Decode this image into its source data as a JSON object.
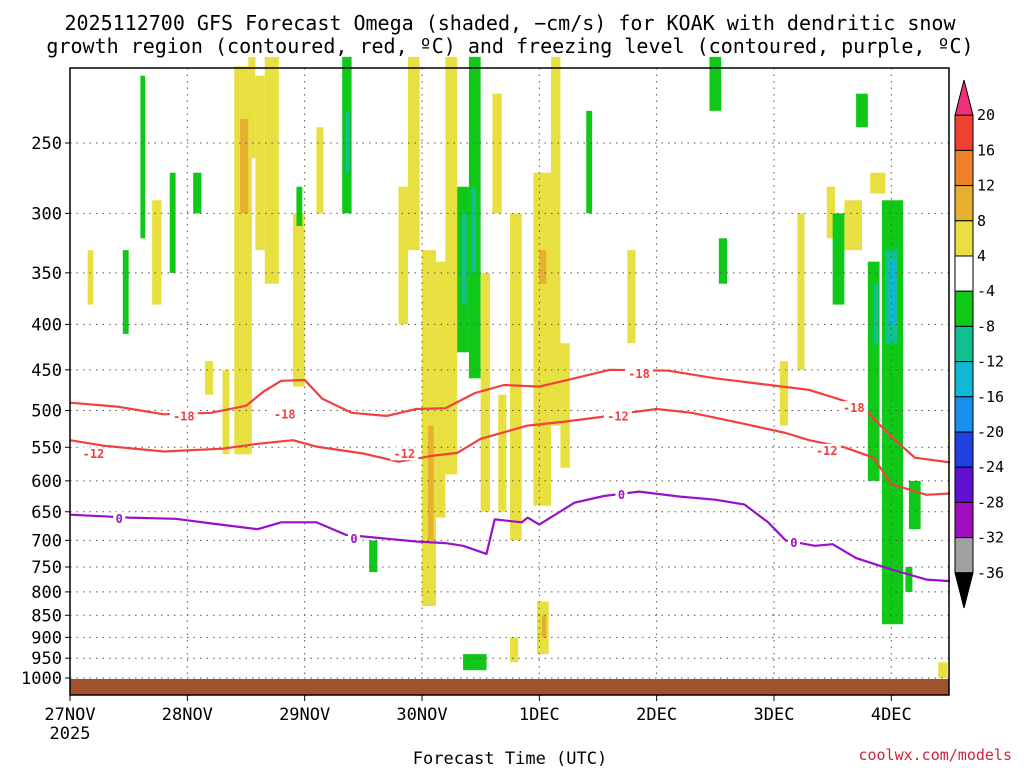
{
  "chart_data": {
    "type": "heatmap",
    "title_lines": [
      "2025112700 GFS Forecast Omega (shaded, −cm/s) for KOAK with dendritic snow",
      "growth region (contoured, red, ºC) and freezing level (contoured, purple, ºC)"
    ],
    "xlabel": "Forecast Time (UTC)",
    "x_ticks": [
      {
        "t": 0,
        "label": "27NOV",
        "sub": "2025"
      },
      {
        "t": 1,
        "label": "28NOV",
        "sub": ""
      },
      {
        "t": 2,
        "label": "29NOV",
        "sub": ""
      },
      {
        "t": 3,
        "label": "30NOV",
        "sub": ""
      },
      {
        "t": 4,
        "label": "1DEC",
        "sub": ""
      },
      {
        "t": 5,
        "label": "2DEC",
        "sub": ""
      },
      {
        "t": 6,
        "label": "3DEC",
        "sub": ""
      },
      {
        "t": 7,
        "label": "4DEC",
        "sub": ""
      }
    ],
    "xlim": [
      0,
      7.5
    ],
    "y_ticks": [
      250,
      300,
      350,
      400,
      450,
      500,
      550,
      600,
      650,
      700,
      750,
      800,
      850,
      900,
      950,
      1000
    ],
    "y_label_ticks": [
      "250",
      "300",
      "350",
      "400",
      "450",
      "500",
      "550",
      "600",
      "650",
      "700",
      "750",
      "800",
      "850",
      "900",
      "950",
      "1000"
    ],
    "ylim": [
      200,
      1010
    ],
    "y_scale": "log-pressure (inverted)",
    "grid": true,
    "colorbar": {
      "labels": [
        "20",
        "16",
        "12",
        "8",
        "4",
        "-4",
        "-8",
        "-12",
        "-16",
        "-20",
        "-24",
        "-28",
        "-32",
        "-36"
      ],
      "levels": [
        20,
        16,
        12,
        8,
        4,
        -4,
        -8,
        -12,
        -16,
        -20,
        -24,
        -28,
        -32,
        -36
      ],
      "colors": [
        "#f0307a",
        "#f04030",
        "#f08028",
        "#e8b030",
        "#e8e040",
        "#ffffff",
        "#10c818",
        "#10c090",
        "#10b8d8",
        "#1890ee",
        "#2040e0",
        "#6010d0",
        "#a010c0",
        "#a0a0a0",
        "#000000"
      ]
    },
    "contours": [
      {
        "label": "-18",
        "color": "#f04040",
        "label_positions": [
          [
            0.97,
            508
          ],
          [
            1.83,
            505
          ],
          [
            4.85,
            455
          ],
          [
            6.68,
            497
          ]
        ],
        "points": [
          [
            0,
            490
          ],
          [
            0.4,
            495
          ],
          [
            0.8,
            505
          ],
          [
            1.2,
            503
          ],
          [
            1.5,
            494
          ],
          [
            1.65,
            476
          ],
          [
            1.8,
            463
          ],
          [
            2.0,
            462
          ],
          [
            2.15,
            485
          ],
          [
            2.4,
            503
          ],
          [
            2.7,
            507
          ],
          [
            2.95,
            498
          ],
          [
            3.2,
            497
          ],
          [
            3.45,
            478
          ],
          [
            3.7,
            468
          ],
          [
            4.0,
            470
          ],
          [
            4.3,
            460
          ],
          [
            4.6,
            450
          ],
          [
            5.1,
            451
          ],
          [
            5.5,
            460
          ],
          [
            5.9,
            467
          ],
          [
            6.3,
            474
          ],
          [
            6.5,
            483
          ],
          [
            6.75,
            495
          ],
          [
            7.0,
            535
          ],
          [
            7.2,
            565
          ],
          [
            7.5,
            572
          ]
        ]
      },
      {
        "label": "-12",
        "color": "#f04040",
        "label_positions": [
          [
            0.2,
            560
          ],
          [
            2.85,
            560
          ],
          [
            4.67,
            508
          ],
          [
            6.45,
            555
          ]
        ],
        "points": [
          [
            0,
            540
          ],
          [
            0.3,
            548
          ],
          [
            0.8,
            556
          ],
          [
            1.3,
            552
          ],
          [
            1.6,
            545
          ],
          [
            1.9,
            540
          ],
          [
            2.1,
            549
          ],
          [
            2.5,
            559
          ],
          [
            2.8,
            571
          ],
          [
            3.1,
            562
          ],
          [
            3.3,
            558
          ],
          [
            3.5,
            538
          ],
          [
            3.9,
            520
          ],
          [
            4.2,
            515
          ],
          [
            4.5,
            509
          ],
          [
            4.7,
            504
          ],
          [
            5.0,
            498
          ],
          [
            5.3,
            503
          ],
          [
            5.7,
            516
          ],
          [
            6.1,
            530
          ],
          [
            6.3,
            540
          ],
          [
            6.6,
            550
          ],
          [
            6.85,
            565
          ],
          [
            7.0,
            605
          ],
          [
            7.3,
            622
          ],
          [
            7.5,
            620
          ]
        ]
      },
      {
        "label": "0",
        "color": "#9a10c8",
        "label_positions": [
          [
            0.42,
            662
          ],
          [
            2.42,
            698
          ],
          [
            4.7,
            622
          ],
          [
            6.17,
            705
          ]
        ],
        "points": [
          [
            0,
            655
          ],
          [
            0.5,
            660
          ],
          [
            0.9,
            662
          ],
          [
            1.2,
            670
          ],
          [
            1.6,
            680
          ],
          [
            1.8,
            668
          ],
          [
            2.1,
            668
          ],
          [
            2.35,
            690
          ],
          [
            2.7,
            697
          ],
          [
            2.95,
            702
          ],
          [
            3.2,
            705
          ],
          [
            3.35,
            710
          ],
          [
            3.55,
            725
          ],
          [
            3.62,
            663
          ],
          [
            3.85,
            668
          ],
          [
            3.9,
            660
          ],
          [
            4.0,
            672
          ],
          [
            4.3,
            635
          ],
          [
            4.55,
            624
          ],
          [
            4.85,
            617
          ],
          [
            5.2,
            625
          ],
          [
            5.5,
            630
          ],
          [
            5.75,
            638
          ],
          [
            5.95,
            668
          ],
          [
            6.1,
            700
          ],
          [
            6.35,
            710
          ],
          [
            6.5,
            707
          ],
          [
            6.7,
            733
          ],
          [
            7.0,
            755
          ],
          [
            7.3,
            775
          ],
          [
            7.5,
            778
          ]
        ]
      }
    ]
  },
  "credit": "coolwx.com/models"
}
